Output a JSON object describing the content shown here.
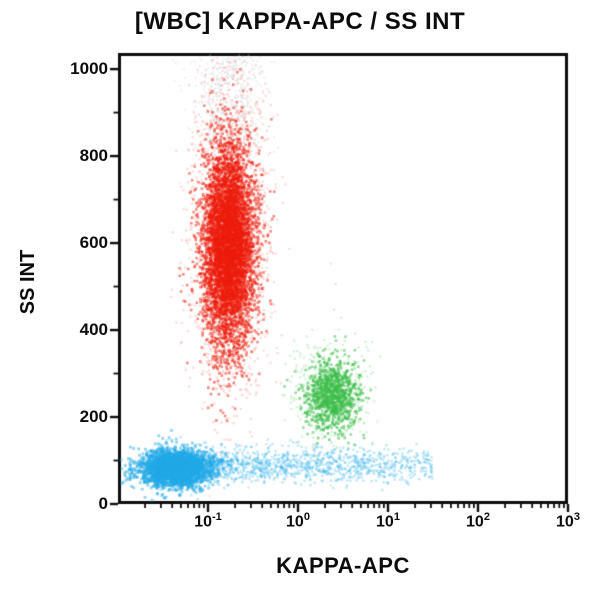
{
  "chart_data": {
    "type": "scatter",
    "title": "[WBC] KAPPA-APC / SS INT",
    "xlabel": "KAPPA-APC",
    "ylabel": "SS INT",
    "x_scale": "log10",
    "x_decade_min": -2,
    "x_decade_max": 3,
    "x_tick_labels": [
      {
        "base": "10",
        "exp": "-1"
      },
      {
        "base": "10",
        "exp": "0"
      },
      {
        "base": "10",
        "exp": "1"
      },
      {
        "base": "10",
        "exp": "2"
      },
      {
        "base": "10",
        "exp": "3"
      }
    ],
    "y_ticks": [
      "1000",
      "800",
      "600",
      "400",
      "200",
      "0"
    ],
    "y_tick_values": [
      1000,
      800,
      600,
      400,
      200,
      0
    ],
    "y_minor_step": 100,
    "y_axis_max": 1037,
    "grid": false,
    "axis_color": "#0d0d0d",
    "populations": [
      {
        "name": "debris",
        "color": "#c3c6ca",
        "alpha": 0.28,
        "n": 650,
        "radius": 1.0,
        "x_log_mean": -0.78,
        "x_log_sd": 0.2,
        "y_mean": 950,
        "y_sd": 80
      },
      {
        "name": "granulocytes-fringe",
        "color": "#f2443a",
        "alpha": 0.2,
        "n": 2000,
        "radius": 1.1,
        "x_log_mean": -0.75,
        "x_log_sd": 0.21,
        "y_mean": 615,
        "y_sd": 185
      },
      {
        "name": "granulocytes-core",
        "color": "#ee1b0b",
        "alpha": 0.5,
        "n": 5600,
        "radius": 1.3,
        "x_log_mean": -0.77,
        "x_log_sd": 0.145,
        "y_mean": 595,
        "y_sd": 118
      },
      {
        "name": "kappa-positive-fringe",
        "color": "#58c75f",
        "alpha": 0.25,
        "n": 420,
        "radius": 1.1,
        "x_log_mean": 0.36,
        "x_log_sd": 0.22,
        "y_mean": 255,
        "y_sd": 70
      },
      {
        "name": "kappa-positive-core",
        "color": "#3cbd48",
        "alpha": 0.55,
        "n": 950,
        "radius": 1.3,
        "x_log_mean": 0.38,
        "x_log_sd": 0.14,
        "y_mean": 250,
        "y_sd": 42
      },
      {
        "name": "lymphocytes-tail",
        "color": "#2fb0ea",
        "alpha": 0.3,
        "n": 1600,
        "radius": 1.2,
        "dist": "uniform_log",
        "x_log_min": -1.55,
        "x_log_max": 1.5,
        "x_skew": 1.5,
        "y_mean": 88,
        "y_sd": 20
      },
      {
        "name": "lymphocytes-main",
        "color": "#22a9e7",
        "alpha": 0.5,
        "n": 2800,
        "radius": 1.4,
        "x_log_mean": -1.36,
        "x_log_sd": 0.2,
        "y_mean": 82,
        "y_sd": 21
      }
    ]
  }
}
